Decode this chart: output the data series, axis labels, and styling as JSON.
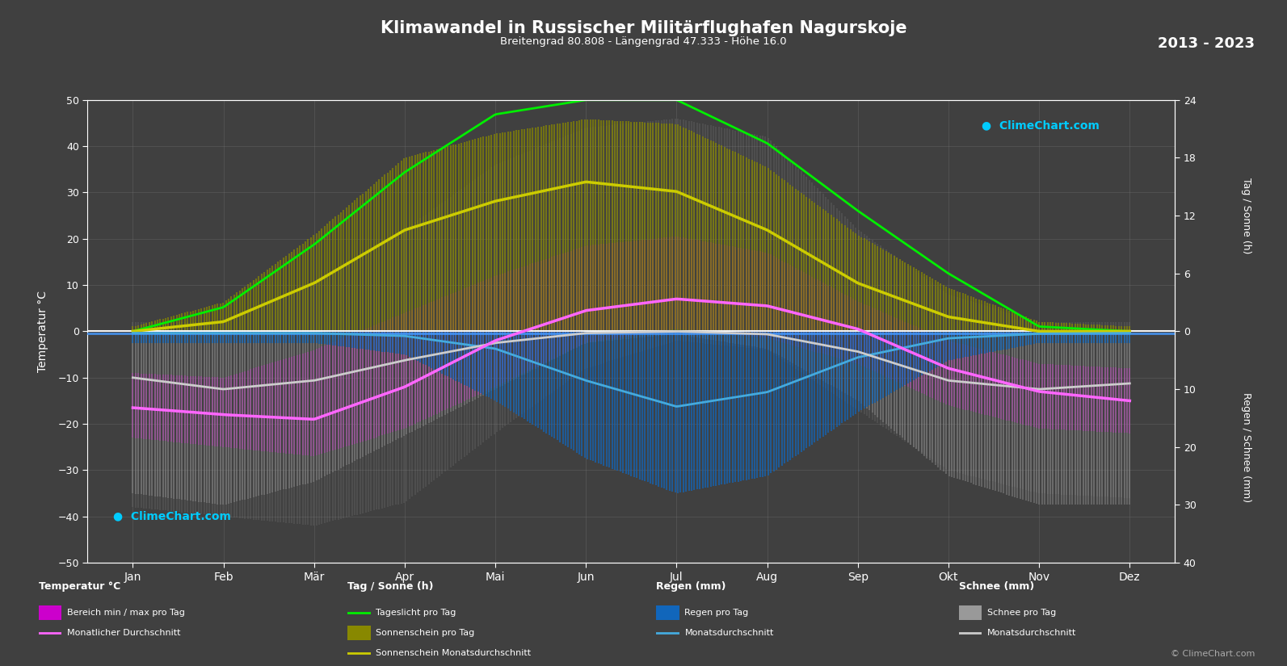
{
  "title": "Klimawandel in Russischer Militärflughafen Nagurskoje",
  "subtitle": "Breitengrad 80.808 - Längengrad 47.333 - Höhe 16.0",
  "year_range": "2013 - 2023",
  "bg_color": "#404040",
  "months": [
    "Jan",
    "Feb",
    "Mär",
    "Apr",
    "Mai",
    "Jun",
    "Jul",
    "Aug",
    "Sep",
    "Okt",
    "Nov",
    "Dez"
  ],
  "temp_ylim": [
    -50,
    50
  ],
  "temp_ticks": [
    -50,
    -40,
    -30,
    -20,
    -10,
    0,
    10,
    20,
    30,
    40,
    50
  ],
  "sun_ylim_max": 24,
  "precip_ylim_max": 40,
  "right_ticks_sun": [
    0,
    6,
    12,
    18,
    24
  ],
  "right_ticks_precip": [
    0,
    10,
    20,
    30,
    40
  ],
  "temp_avg": [
    -16.5,
    -18.0,
    -19.0,
    -12.0,
    -2.0,
    4.5,
    7.0,
    5.5,
    0.5,
    -8.0,
    -13.0,
    -15.0
  ],
  "temp_max_avg": [
    -9.0,
    -10.0,
    -4.0,
    4.0,
    12.0,
    18.5,
    20.5,
    17.0,
    6.5,
    -2.0,
    -7.0,
    -8.0
  ],
  "temp_min_avg": [
    -23.0,
    -25.0,
    -27.0,
    -21.0,
    -12.0,
    -2.5,
    0.5,
    -1.5,
    -7.0,
    -16.0,
    -21.0,
    -22.0
  ],
  "temp_max_record": [
    2.0,
    2.0,
    10.0,
    22.0,
    36.0,
    44.0,
    46.0,
    42.0,
    22.0,
    8.0,
    2.0,
    2.0
  ],
  "temp_min_record": [
    -38.0,
    -40.0,
    -42.0,
    -37.0,
    -22.0,
    -8.0,
    -2.0,
    -4.0,
    -17.0,
    -30.0,
    -35.0,
    -36.0
  ],
  "daylight": [
    0.0,
    2.5,
    9.0,
    16.5,
    22.5,
    24.0,
    24.0,
    19.5,
    12.5,
    6.0,
    0.5,
    0.0
  ],
  "sunshine_avg": [
    0.0,
    1.0,
    5.0,
    10.5,
    13.5,
    15.5,
    14.5,
    10.5,
    5.0,
    1.5,
    0.0,
    0.0
  ],
  "sunshine_max": [
    0.5,
    3.0,
    10.0,
    18.0,
    20.5,
    22.0,
    21.5,
    17.0,
    10.0,
    4.5,
    1.0,
    0.5
  ],
  "rain_daily_max": [
    2.0,
    2.0,
    2.0,
    4.0,
    12.0,
    22.0,
    28.0,
    25.0,
    14.0,
    5.0,
    2.0,
    2.0
  ],
  "rain_avg": [
    0.3,
    0.3,
    0.3,
    0.8,
    3.0,
    8.5,
    13.0,
    10.5,
    4.5,
    1.2,
    0.4,
    0.3
  ],
  "snow_daily_max": [
    28.0,
    30.0,
    26.0,
    18.0,
    10.0,
    2.0,
    0.5,
    3.0,
    12.0,
    25.0,
    30.0,
    30.0
  ],
  "snow_avg": [
    8.0,
    10.0,
    8.5,
    5.0,
    2.0,
    0.3,
    0.0,
    0.5,
    3.5,
    8.5,
    10.0,
    9.0
  ],
  "grid_color": "#777777",
  "daylight_color": "#00ee00",
  "sunshine_bar_color": "#888800",
  "sunshine_avg_color": "#cccc00",
  "rain_bar_color": "#1166bb",
  "rain_avg_color": "#44aadd",
  "snow_bar_color": "#999999",
  "snow_avg_color": "#cccccc",
  "temp_spread_outer_color": "#888888",
  "temp_spread_inner_color": "#cc00cc",
  "temp_avg_line_color": "#ff66ff",
  "zero_line_color": "#ffffff",
  "blue_line_color": "#4499ff"
}
